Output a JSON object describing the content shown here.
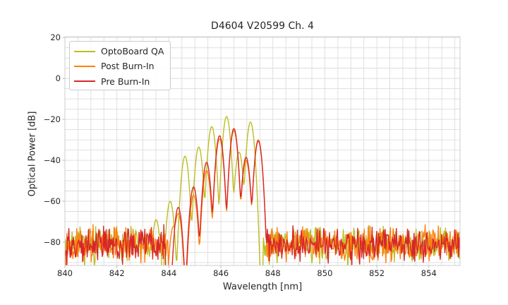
{
  "chart_data": {
    "type": "line",
    "title": "D4604 V20599 Ch. 4",
    "xlabel": "Wavelength [nm]",
    "ylabel": "Optical Power [dB]",
    "xlim": [
      840,
      855.2
    ],
    "ylim": [
      -91.4,
      20.4
    ],
    "x_ticks": {
      "values": [
        840,
        842,
        844,
        846,
        848,
        850,
        852,
        854
      ],
      "labels": [
        "840",
        "842",
        "844",
        "846",
        "848",
        "850",
        "852",
        "854"
      ]
    },
    "y_ticks": {
      "values": [
        20,
        0,
        -20,
        -40,
        -60,
        -80
      ],
      "labels": [
        "20",
        "0",
        "−20",
        "−40",
        "−60",
        "−80"
      ]
    },
    "grid": {
      "x_step_nm": 0.5,
      "y_step_db": 5,
      "color": "#dcdcdc",
      "on": true
    },
    "axes": {
      "spine_color": "#cccccc",
      "tick_color": "#b0b0b0"
    },
    "legend": {
      "position": "upper-left"
    },
    "noise_floor": {
      "mean_db": -81,
      "spread_db": 10,
      "max_db": -71
    },
    "mode_sigma_nm": 0.09,
    "line_width": 1.4,
    "series": [
      {
        "name": "OptoBoard QA",
        "color": "#bcbd22",
        "seed": 7,
        "modes": [
          [
            843.51,
            -69
          ],
          [
            844.05,
            -60
          ],
          [
            844.62,
            -38
          ],
          [
            845.15,
            -33.5
          ],
          [
            845.65,
            -23.5
          ],
          [
            846.22,
            -18.6
          ],
          [
            846.7,
            -36
          ],
          [
            847.14,
            -21.3
          ]
        ],
        "noise_regions": [
          [
            840,
            843.72
          ],
          [
            847.62,
            855.2
          ]
        ]
      },
      {
        "name": "Post Burn-In",
        "color": "#ff7f0e",
        "seed": 13,
        "modes": [
          [
            844.17,
            -72.5
          ],
          [
            844.36,
            -66
          ],
          [
            844.95,
            -57
          ],
          [
            845.45,
            -45
          ],
          [
            845.95,
            -29.5
          ],
          [
            846.5,
            -25.5
          ],
          [
            846.97,
            -40
          ],
          [
            847.44,
            -30
          ]
        ],
        "noise_regions": [
          [
            840,
            843.97
          ],
          [
            847.68,
            855.2
          ]
        ]
      },
      {
        "name": "Pre Burn-In",
        "color": "#d62728",
        "seed": 29,
        "modes": [
          [
            844.36,
            -63
          ],
          [
            844.95,
            -53
          ],
          [
            845.45,
            -41
          ],
          [
            845.95,
            -28
          ],
          [
            846.5,
            -24.5
          ],
          [
            846.97,
            -38.5
          ],
          [
            847.44,
            -30.5
          ]
        ],
        "noise_regions": [
          [
            840,
            843.88
          ],
          [
            847.72,
            855.2
          ]
        ]
      }
    ]
  }
}
